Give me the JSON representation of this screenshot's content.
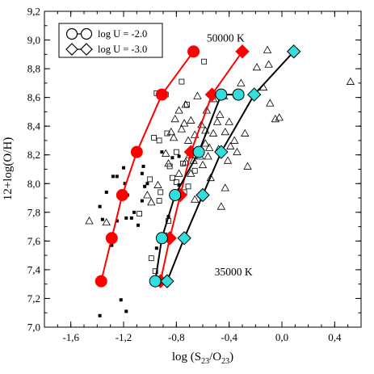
{
  "chart_data": {
    "type": "scatter",
    "xlabel_main": "log (S",
    "xlabel_sub1": "23",
    "xlabel_mid": "/O",
    "xlabel_sub2": "23",
    "xlabel_end": ")",
    "ylabel": "12+log(O/H)",
    "xlim": [
      -1.8,
      0.6
    ],
    "ylim": [
      7.0,
      9.2
    ],
    "xticks": [
      -1.6,
      -1.2,
      -0.8,
      -0.4,
      0.0,
      0.4
    ],
    "xtick_labels": [
      "-1,6",
      "-1,2",
      "-0,8",
      "-0,4",
      "0,0",
      "0,4"
    ],
    "yticks": [
      7.0,
      7.2,
      7.4,
      7.6,
      7.8,
      8.0,
      8.2,
      8.4,
      8.6,
      8.8,
      9.0,
      9.2
    ],
    "ytick_labels": [
      "7,0",
      "7,2",
      "7,4",
      "7,6",
      "7,8",
      "8,0",
      "8,2",
      "8,4",
      "8,6",
      "8,8",
      "9,0",
      "9,2"
    ],
    "legend": [
      {
        "label": "log U = -2.0",
        "marker": "circle"
      },
      {
        "label": "log U = -3.0",
        "marker": "diamond"
      }
    ],
    "annotations": [
      {
        "text": "50000 K",
        "x": -0.57,
        "y": 8.99
      },
      {
        "text": "35000 K",
        "x": -0.51,
        "y": 7.36
      }
    ],
    "colors": {
      "red_series": "#ff0000",
      "cyan_series": "#33dddd",
      "line_black": "#000000"
    },
    "model_series": [
      {
        "temperature": "50000 K",
        "logU": "-2.0",
        "marker": "circle",
        "color": "#ff0000",
        "x": [
          -1.37,
          -1.29,
          -1.21,
          -1.1,
          -0.91,
          -0.67
        ],
        "y": [
          7.32,
          7.62,
          7.92,
          8.22,
          8.62,
          8.92
        ]
      },
      {
        "temperature": "50000 K",
        "logU": "-3.0",
        "marker": "diamond",
        "color": "#ff0000",
        "x": [
          -0.92,
          -0.85,
          -0.77,
          -0.69,
          -0.53,
          -0.3
        ],
        "y": [
          7.32,
          7.62,
          7.92,
          8.22,
          8.62,
          8.92
        ]
      },
      {
        "temperature": "35000 K",
        "logU": "-2.0",
        "marker": "circle",
        "color": "#33dddd",
        "x": [
          -0.96,
          -0.91,
          -0.81,
          -0.63,
          -0.46,
          -0.33
        ],
        "y": [
          7.32,
          7.62,
          7.92,
          8.22,
          8.62,
          8.62
        ]
      },
      {
        "temperature": "35000 K",
        "logU": "-3.0",
        "marker": "diamond",
        "color": "#33dddd",
        "x": [
          -0.87,
          -0.74,
          -0.6,
          -0.46,
          -0.21,
          0.09
        ],
        "y": [
          7.32,
          7.62,
          7.92,
          8.22,
          8.62,
          8.92
        ]
      }
    ],
    "observations": {
      "filled_squares": [
        [
          -1.38,
          7.08
        ],
        [
          -1.22,
          7.19
        ],
        [
          -1.18,
          7.11
        ],
        [
          -1.29,
          7.57
        ],
        [
          -1.25,
          7.74
        ],
        [
          -1.18,
          7.76
        ],
        [
          -1.36,
          7.75
        ],
        [
          -1.38,
          7.84
        ],
        [
          -1.33,
          7.94
        ],
        [
          -1.28,
          8.05
        ],
        [
          -1.25,
          8.05
        ],
        [
          -1.2,
          8.11
        ],
        [
          -1.19,
          8.0
        ],
        [
          -1.17,
          7.92
        ],
        [
          -1.12,
          7.8
        ],
        [
          -1.06,
          8.07
        ],
        [
          -1.04,
          7.98
        ],
        [
          -1.05,
          8.12
        ],
        [
          -1.02,
          8.0
        ],
        [
          -0.86,
          7.77
        ],
        [
          -0.83,
          8.18
        ],
        [
          -0.9,
          7.6
        ],
        [
          -0.95,
          7.55
        ],
        [
          -0.91,
          8.22
        ],
        [
          -1.06,
          7.88
        ],
        [
          -0.78,
          8.19
        ],
        [
          -0.78,
          7.99
        ],
        [
          -1.09,
          7.71
        ],
        [
          -1.14,
          7.76
        ]
      ],
      "open_squares": [
        [
          -0.99,
          7.48
        ],
        [
          -0.96,
          7.39
        ],
        [
          -1.08,
          7.79
        ],
        [
          -0.92,
          7.94
        ],
        [
          -0.89,
          7.64
        ],
        [
          -0.86,
          7.74
        ],
        [
          -0.93,
          7.88
        ],
        [
          -1.0,
          8.03
        ],
        [
          -0.85,
          8.12
        ],
        [
          -0.8,
          8.01
        ],
        [
          -0.74,
          7.94
        ],
        [
          -0.97,
          8.32
        ],
        [
          -0.93,
          8.3
        ],
        [
          -0.88,
          8.62
        ],
        [
          -0.87,
          8.35
        ],
        [
          -0.76,
          8.71
        ],
        [
          -0.72,
          8.55
        ],
        [
          -0.75,
          8.14
        ],
        [
          -0.66,
          8.09
        ],
        [
          -0.71,
          7.98
        ],
        [
          -0.95,
          8.63
        ],
        [
          -0.59,
          8.85
        ],
        [
          -0.83,
          8.04
        ],
        [
          -0.8,
          8.22
        ]
      ],
      "open_triangles": [
        [
          -1.46,
          7.74
        ],
        [
          -1.33,
          7.73
        ],
        [
          -1.02,
          7.92
        ],
        [
          -0.94,
          7.99
        ],
        [
          -0.99,
          7.87
        ],
        [
          -0.88,
          8.21
        ],
        [
          -0.82,
          8.32
        ],
        [
          -0.81,
          8.45
        ],
        [
          -0.78,
          8.51
        ],
        [
          -0.73,
          8.55
        ],
        [
          -0.76,
          8.38
        ],
        [
          -0.71,
          8.3
        ],
        [
          -0.69,
          8.44
        ],
        [
          -0.66,
          8.34
        ],
        [
          -0.64,
          8.22
        ],
        [
          -0.61,
          8.41
        ],
        [
          -0.58,
          8.28
        ],
        [
          -0.56,
          8.19
        ],
        [
          -0.54,
          8.04
        ],
        [
          -0.52,
          8.35
        ],
        [
          -0.49,
          8.43
        ],
        [
          -0.47,
          8.48
        ],
        [
          -0.44,
          8.61
        ],
        [
          -0.43,
          8.36
        ],
        [
          -0.41,
          8.16
        ],
        [
          -0.39,
          8.26
        ],
        [
          -0.36,
          8.3
        ],
        [
          -0.31,
          8.7
        ],
        [
          -0.28,
          8.35
        ],
        [
          -0.26,
          8.12
        ],
        [
          -0.21,
          8.63
        ],
        [
          -0.19,
          8.81
        ],
        [
          -0.14,
          8.67
        ],
        [
          -0.1,
          8.83
        ],
        [
          -0.05,
          8.45
        ],
        [
          -0.09,
          8.56
        ],
        [
          -0.11,
          8.93
        ],
        [
          -0.02,
          8.46
        ],
        [
          0.52,
          8.71
        ],
        [
          -0.57,
          8.51
        ],
        [
          -0.46,
          7.84
        ],
        [
          -0.66,
          7.89
        ],
        [
          -0.6,
          8.13
        ],
        [
          -0.52,
          8.59
        ],
        [
          -0.48,
          8.24
        ],
        [
          -0.73,
          8.15
        ],
        [
          -0.78,
          8.07
        ],
        [
          -0.86,
          8.14
        ],
        [
          -0.69,
          8.07
        ],
        [
          -0.64,
          8.61
        ],
        [
          -0.4,
          8.43
        ],
        [
          -0.43,
          7.97
        ],
        [
          -0.34,
          8.22
        ],
        [
          -0.67,
          8.16
        ],
        [
          -0.55,
          8.25
        ],
        [
          -0.62,
          8.19
        ],
        [
          -0.7,
          8.2
        ],
        [
          -0.84,
          8.36
        ],
        [
          -0.74,
          8.42
        ],
        [
          -0.58,
          8.37
        ]
      ]
    }
  }
}
